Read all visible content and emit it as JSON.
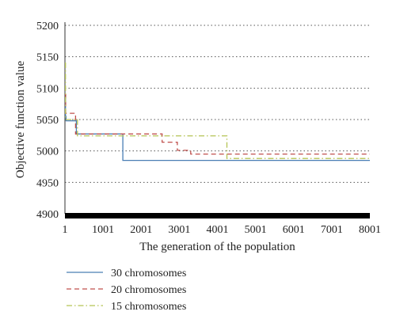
{
  "chart_data": {
    "type": "line",
    "title": "",
    "xlabel": "The generation of the population",
    "ylabel": "Objective function value",
    "xlim": [
      1,
      8001
    ],
    "ylim": [
      4900,
      5200
    ],
    "xticks": [
      "1",
      "1001",
      "2001",
      "3001",
      "4001",
      "5001",
      "6001",
      "7001",
      "8001"
    ],
    "yticks": [
      "4900",
      "4950",
      "5000",
      "5050",
      "5100",
      "5150",
      "5200"
    ],
    "grid": "horizontal dotted",
    "legend_position": "bottom-left",
    "series": [
      {
        "name": "30 chromosomes",
        "color": "#4a7fb5",
        "dash": "solid",
        "x": [
          1,
          15,
          15,
          30,
          30,
          300,
          300,
          1520,
          1520,
          8001
        ],
        "y": [
          5085,
          5085,
          5055,
          5055,
          5048,
          5048,
          5027,
          5027,
          4985,
          4985
        ]
      },
      {
        "name": "20 chromosomes",
        "color": "#c0504d",
        "dash": "dashed",
        "x": [
          1,
          20,
          20,
          280,
          280,
          2550,
          2550,
          2950,
          2950,
          3300,
          3300,
          3700,
          3700,
          8001
        ],
        "y": [
          5090,
          5090,
          5060,
          5060,
          5027,
          5027,
          5014,
          5014,
          5001,
          5001,
          4995,
          4995,
          4995,
          4995
        ]
      },
      {
        "name": "15 chromosomes",
        "color": "#b5c455",
        "dash": "dashdot",
        "x": [
          1,
          15,
          15,
          330,
          330,
          4250,
          4250,
          8001
        ],
        "y": [
          5140,
          5140,
          5050,
          5050,
          5024,
          5024,
          4988,
          4988
        ]
      }
    ]
  }
}
